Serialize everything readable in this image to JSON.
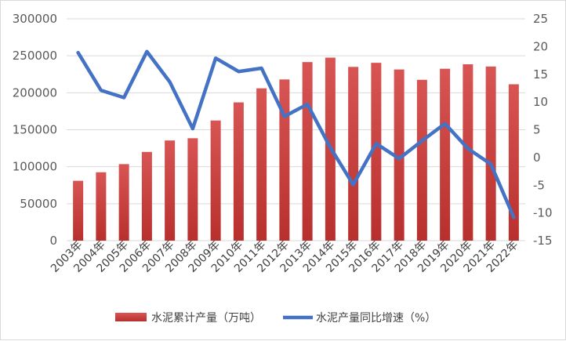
{
  "chart_data": {
    "type": "bar+line",
    "categories": [
      "2003年",
      "2004年",
      "2005年",
      "2006年",
      "2007年",
      "2008年",
      "2009年",
      "2010年",
      "2011年",
      "2012年",
      "2013年",
      "2014年",
      "2015年",
      "2016年",
      "2017年",
      "2018年",
      "2019年",
      "2020年",
      "2021年",
      "2022年"
    ],
    "series": [
      {
        "name": "水泥累计产量（万吨）",
        "type": "bar",
        "axis": "left",
        "color": "#c0312f",
        "values": [
          81000,
          92500,
          103500,
          120000,
          135500,
          138500,
          162500,
          187000,
          206000,
          218000,
          241500,
          247500,
          235000,
          240500,
          231500,
          217500,
          232500,
          238500,
          235500,
          211500
        ]
      },
      {
        "name": "水泥产量同比增速（%）",
        "type": "line",
        "axis": "right",
        "color": "#4472c4",
        "values": [
          18.9,
          12.1,
          10.8,
          19.1,
          13.6,
          5.2,
          17.9,
          15.5,
          16.1,
          7.4,
          9.6,
          1.8,
          -4.9,
          2.5,
          -0.2,
          3.0,
          6.1,
          1.6,
          -1.2,
          -10.8
        ]
      }
    ],
    "y_left": {
      "min": 0,
      "max": 300000,
      "step": 50000,
      "ticks": [
        "0",
        "50000",
        "100000",
        "150000",
        "200000",
        "250000",
        "300000"
      ]
    },
    "y_right": {
      "min": -15,
      "max": 25,
      "step": 5,
      "ticks": [
        "-15",
        "-10",
        "-5",
        "0",
        "5",
        "10",
        "15",
        "20",
        "25"
      ]
    },
    "grid": true,
    "legend_position": "bottom",
    "legend": [
      {
        "label": "水泥累计产量（万吨）",
        "color": "#c0312f",
        "kind": "bar"
      },
      {
        "label": "水泥产量同比增速（%）",
        "color": "#4472c4",
        "kind": "line"
      }
    ]
  }
}
